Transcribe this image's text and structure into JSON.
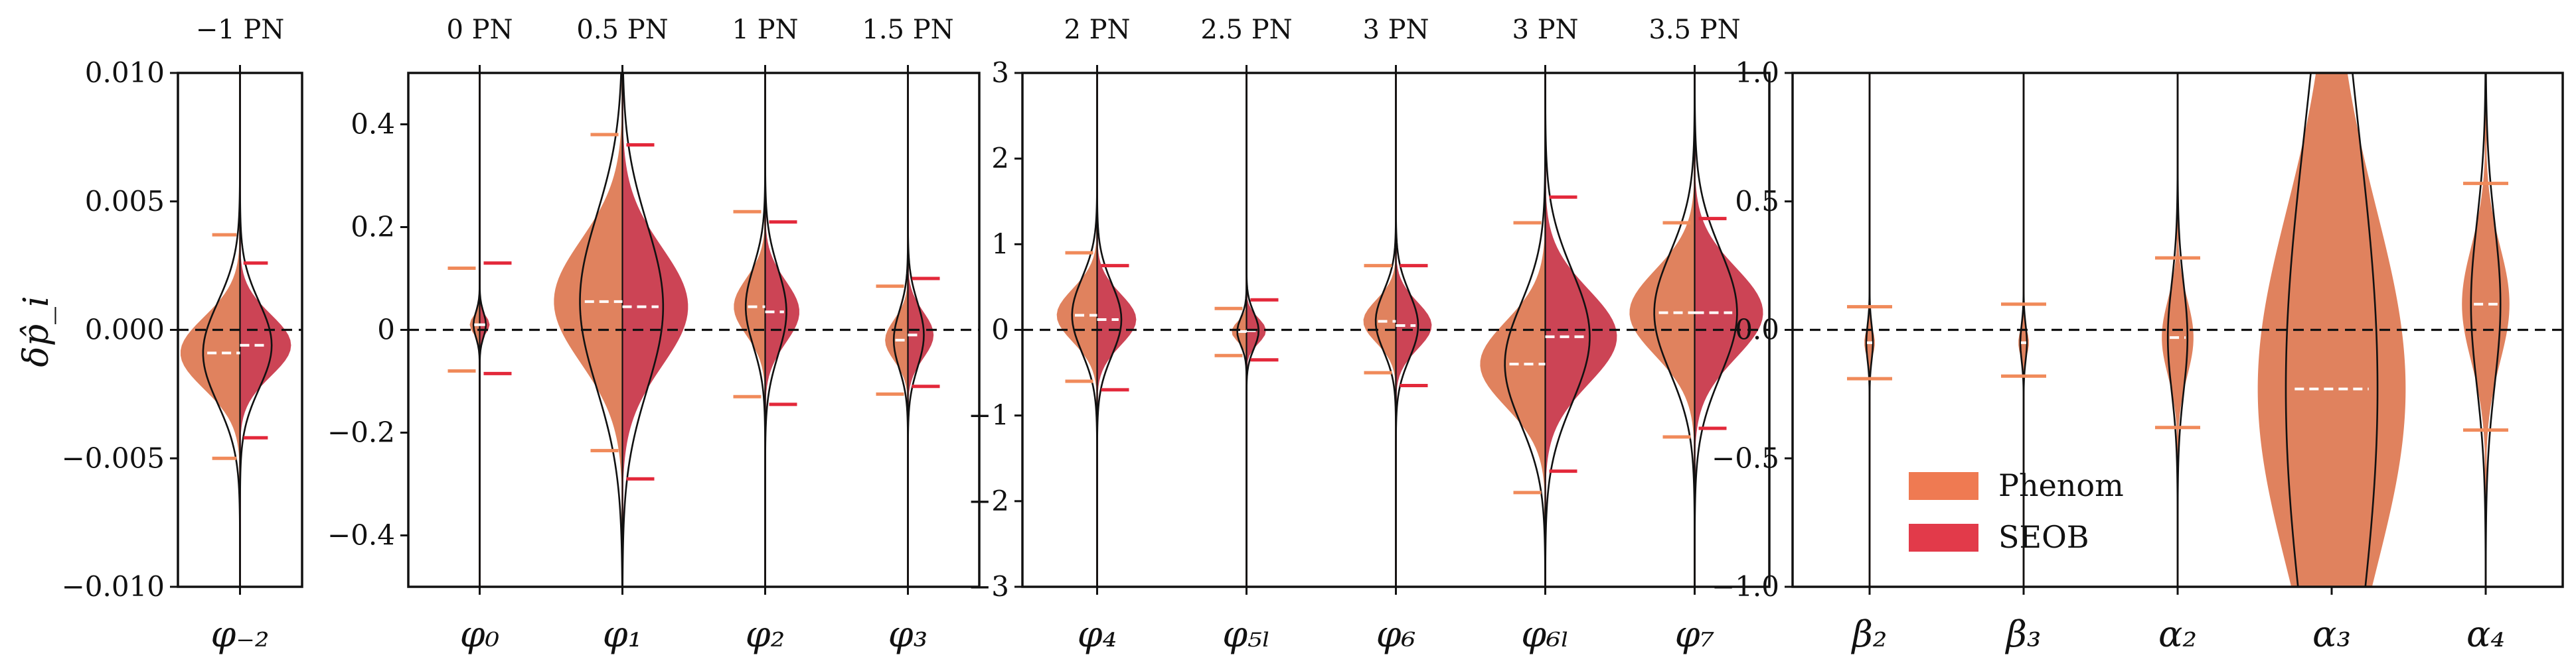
{
  "figure": {
    "ylabel": "δp̂_i",
    "legend": {
      "placement": "lower-left of last panel",
      "entries": [
        {
          "name": "Phenom",
          "color": "#ef7a52"
        },
        {
          "name": "SEOB",
          "color": "#e23a4a"
        }
      ]
    }
  },
  "chart_data": [
    {
      "type": "violin",
      "ylim": [
        -0.01,
        0.01
      ],
      "yticks": [
        "−0.010",
        "−0.005",
        "0.000",
        "0.005",
        "0.010"
      ],
      "ytick_values": [
        -0.01,
        -0.005,
        0,
        0.005,
        0.01
      ],
      "params": [
        {
          "label": "φ₋₂",
          "pn": "−1 PN",
          "phenom": {
            "median": -0.0009,
            "lo": -0.005,
            "hi": 0.0037,
            "width": 0.0028
          },
          "seob": {
            "median": -0.0006,
            "lo": -0.0042,
            "hi": 0.0026,
            "width": 0.0024
          }
        }
      ]
    },
    {
      "type": "violin",
      "ylim": [
        -0.5,
        0.5
      ],
      "yticks": [
        "−0.4",
        "−0.2",
        "0",
        "0.2",
        "0.4"
      ],
      "ytick_values": [
        -0.4,
        -0.2,
        0,
        0.2,
        0.4
      ],
      "params": [
        {
          "label": "φ₀",
          "pn": "0 PN",
          "phenom": {
            "median": 0.01,
            "lo": -0.08,
            "hi": 0.12,
            "width": 0.035
          },
          "seob": {
            "median": 0.01,
            "lo": -0.085,
            "hi": 0.13,
            "width": 0.035
          }
        },
        {
          "label": "φ₁",
          "pn": "0.5 PN",
          "phenom": {
            "median": 0.055,
            "lo": -0.235,
            "hi": 0.38,
            "width": 0.24
          },
          "seob": {
            "median": 0.045,
            "lo": -0.29,
            "hi": 0.36,
            "width": 0.23
          }
        },
        {
          "label": "φ₂",
          "pn": "1 PN",
          "phenom": {
            "median": 0.045,
            "lo": -0.13,
            "hi": 0.23,
            "width": 0.11
          },
          "seob": {
            "median": 0.035,
            "lo": -0.145,
            "hi": 0.21,
            "width": 0.12
          }
        },
        {
          "label": "φ₃",
          "pn": "1.5 PN",
          "phenom": {
            "median": -0.02,
            "lo": -0.125,
            "hi": 0.085,
            "width": 0.08
          },
          "seob": {
            "median": -0.01,
            "lo": -0.11,
            "hi": 0.1,
            "width": 0.09
          }
        }
      ]
    },
    {
      "type": "violin",
      "ylim": [
        -3,
        3
      ],
      "yticks": [
        "−3",
        "−2",
        "−1",
        "0",
        "1",
        "2",
        "3"
      ],
      "ytick_values": [
        -3,
        -2,
        -1,
        0,
        1,
        2,
        3
      ],
      "params": [
        {
          "label": "φ₄",
          "pn": "2 PN",
          "phenom": {
            "median": 0.17,
            "lo": -0.6,
            "hi": 0.9,
            "width": 0.62
          },
          "seob": {
            "median": 0.12,
            "lo": -0.7,
            "hi": 0.75,
            "width": 0.6
          }
        },
        {
          "label": "φ₅ₗ",
          "pn": "2.5 PN",
          "phenom": {
            "median": -0.02,
            "lo": -0.3,
            "hi": 0.25,
            "width": 0.23
          },
          "seob": {
            "median": -0.01,
            "lo": -0.35,
            "hi": 0.35,
            "width": 0.3
          }
        },
        {
          "label": "φ₆",
          "pn": "3 PN",
          "phenom": {
            "median": 0.1,
            "lo": -0.5,
            "hi": 0.75,
            "width": 0.5
          },
          "seob": {
            "median": 0.05,
            "lo": -0.65,
            "hi": 0.75,
            "width": 0.55
          }
        },
        {
          "label": "φ₆ₗ",
          "pn": "3 PN",
          "phenom": {
            "median": -0.4,
            "lo": -1.9,
            "hi": 1.25,
            "width": 1.0
          },
          "seob": {
            "median": -0.08,
            "lo": -1.65,
            "hi": 1.55,
            "width": 1.1
          }
        },
        {
          "label": "φ₇",
          "pn": "3.5 PN",
          "phenom": {
            "median": 0.2,
            "lo": -1.25,
            "hi": 1.25,
            "width": 1.0
          },
          "seob": {
            "median": 0.2,
            "lo": -1.15,
            "hi": 1.3,
            "width": 1.05
          }
        }
      ]
    },
    {
      "type": "violin",
      "ylim": [
        -1,
        1
      ],
      "yticks": [
        "−1.0",
        "−0.5",
        "0.0",
        "0.5",
        "1.0"
      ],
      "ytick_values": [
        -1,
        -0.5,
        0,
        0.5,
        1
      ],
      "params": [
        {
          "label": "β₂",
          "pn": "",
          "phenom": {
            "median": -0.05,
            "lo": -0.19,
            "hi": 0.09,
            "width": 0.1
          }
        },
        {
          "label": "β₃",
          "pn": "",
          "phenom": {
            "median": -0.05,
            "lo": -0.18,
            "hi": 0.1,
            "width": 0.1
          }
        },
        {
          "label": "α₂",
          "pn": "",
          "phenom": {
            "median": -0.03,
            "lo": -0.38,
            "hi": 0.28,
            "width": 0.3
          }
        },
        {
          "label": "α₃",
          "pn": "",
          "phenom": {
            "median": -0.23,
            "lo": -1.1,
            "hi": 1.1,
            "width": 1.4
          }
        },
        {
          "label": "α₄",
          "pn": "",
          "phenom": {
            "median": 0.1,
            "lo": -0.39,
            "hi": 0.57,
            "width": 0.45
          }
        }
      ]
    }
  ]
}
